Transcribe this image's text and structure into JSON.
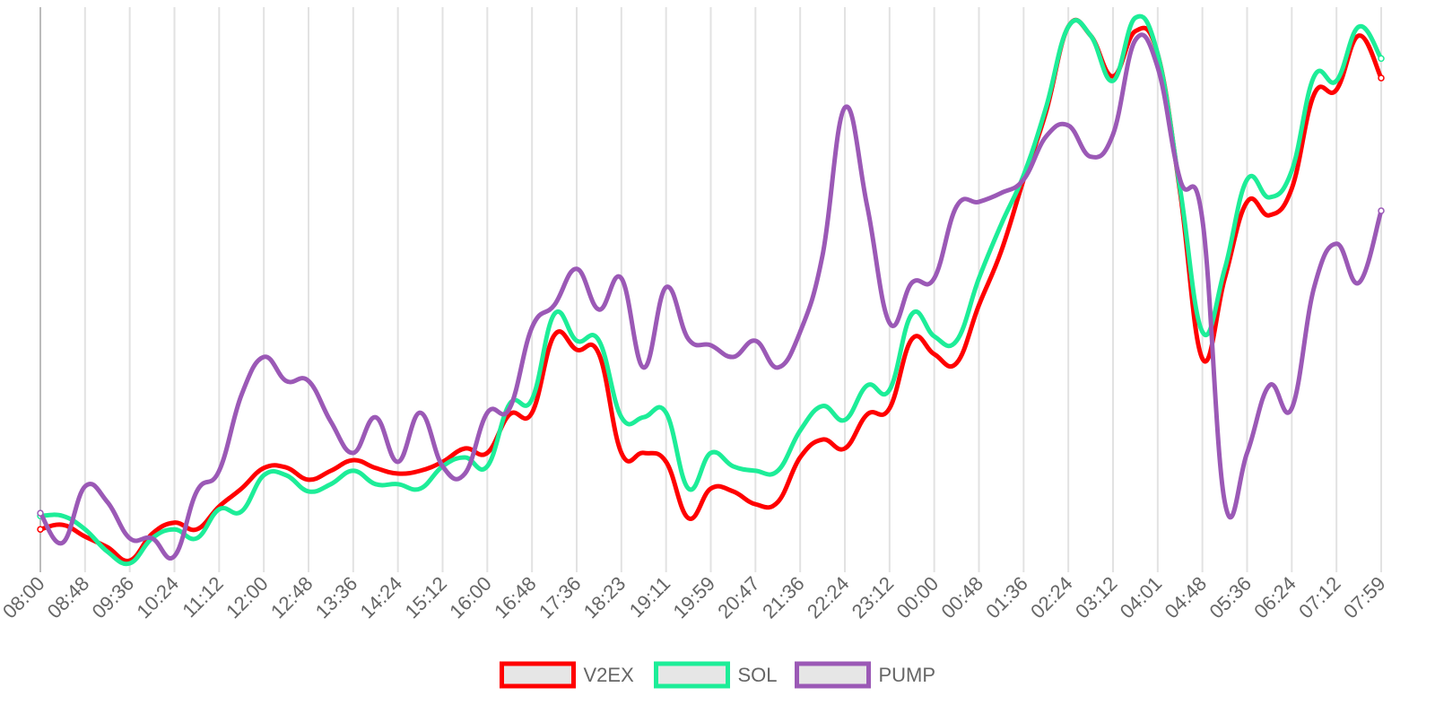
{
  "chart_data": {
    "type": "line",
    "categories": [
      "08:00",
      null,
      "08:48",
      null,
      "09:36",
      null,
      "10:24",
      null,
      "11:12",
      null,
      "12:00",
      null,
      "12:48",
      null,
      "13:36",
      null,
      "14:24",
      null,
      "15:12",
      null,
      "16:00",
      null,
      "16:48",
      null,
      "17:36",
      null,
      "18:23",
      null,
      "19:11",
      null,
      "19:59",
      null,
      "20:47",
      null,
      "21:36",
      null,
      "22:24",
      null,
      "23:12",
      null,
      "00:00",
      null,
      "00:48",
      null,
      "01:36",
      null,
      "02:24",
      null,
      "03:12",
      null,
      "04:01",
      null,
      "04:48",
      null,
      "05:36",
      null,
      "06:24",
      null,
      "07:12",
      null,
      "07:59"
    ],
    "series": [
      {
        "name": "V2EX",
        "color": "#ff0000",
        "values": [
          6.4,
          7.2,
          5.1,
          3.2,
          0.8,
          5.6,
          7.6,
          6.4,
          10.5,
          13.7,
          17.4,
          17.5,
          15.3,
          16.9,
          18.8,
          17.4,
          16.4,
          16.9,
          18.5,
          20.9,
          20.1,
          27.0,
          27.3,
          41.2,
          38.6,
          37.8,
          20.1,
          20.1,
          18.5,
          8.4,
          13.7,
          13.2,
          10.9,
          11.3,
          19.3,
          22.5,
          20.9,
          27.0,
          28.1,
          40.5,
          37.8,
          36.2,
          46.6,
          56.3,
          69.1,
          81.2,
          96.5,
          94.9,
          87.6,
          95.7,
          91.6,
          66.9,
          37.0,
          51.4,
          65.1,
          62.7,
          67.5,
          84.4,
          85.2,
          94.9,
          87.3
        ]
      },
      {
        "name": "SOL",
        "color": "#1ded98",
        "values": [
          8.8,
          8.8,
          6.4,
          2.4,
          0.3,
          4.8,
          6.4,
          4.8,
          10.0,
          9.6,
          16.1,
          16.1,
          13.2,
          14.5,
          16.9,
          14.5,
          14.5,
          13.7,
          17.7,
          19.3,
          17.7,
          28.9,
          29.7,
          45.0,
          40.2,
          40.2,
          26.5,
          26.5,
          27.3,
          13.7,
          20.1,
          17.7,
          16.9,
          16.9,
          24.1,
          28.5,
          26.0,
          32.2,
          31.4,
          45.0,
          41.0,
          40.2,
          51.4,
          61.1,
          69.9,
          82.0,
          96.5,
          94.9,
          86.8,
          98.1,
          91.6,
          67.5,
          41.8,
          53.1,
          69.1,
          65.9,
          70.7,
          87.6,
          86.8,
          96.5,
          90.8
        ]
      },
      {
        "name": "PUMP",
        "color": "#9b59b6",
        "values": [
          9.3,
          4.0,
          14.1,
          11.3,
          4.8,
          4.8,
          1.6,
          13.2,
          16.9,
          30.5,
          37.3,
          33.0,
          33.0,
          25.7,
          20.1,
          26.5,
          18.5,
          27.3,
          17.7,
          16.4,
          27.3,
          28.1,
          42.6,
          46.6,
          53.1,
          45.8,
          51.4,
          35.4,
          49.8,
          40.5,
          39.4,
          37.3,
          40.2,
          35.4,
          41.8,
          55.5,
          82.0,
          64.3,
          43.4,
          50.6,
          51.4,
          64.3,
          65.1,
          66.7,
          69.1,
          76.8,
          78.8,
          73.2,
          77.2,
          94.1,
          89.2,
          69.1,
          61.9,
          11.3,
          20.1,
          32.2,
          28.1,
          49.8,
          57.6,
          50.6,
          63.5
        ]
      }
    ],
    "ylim": [
      0,
      100
    ],
    "grid": true
  }
}
